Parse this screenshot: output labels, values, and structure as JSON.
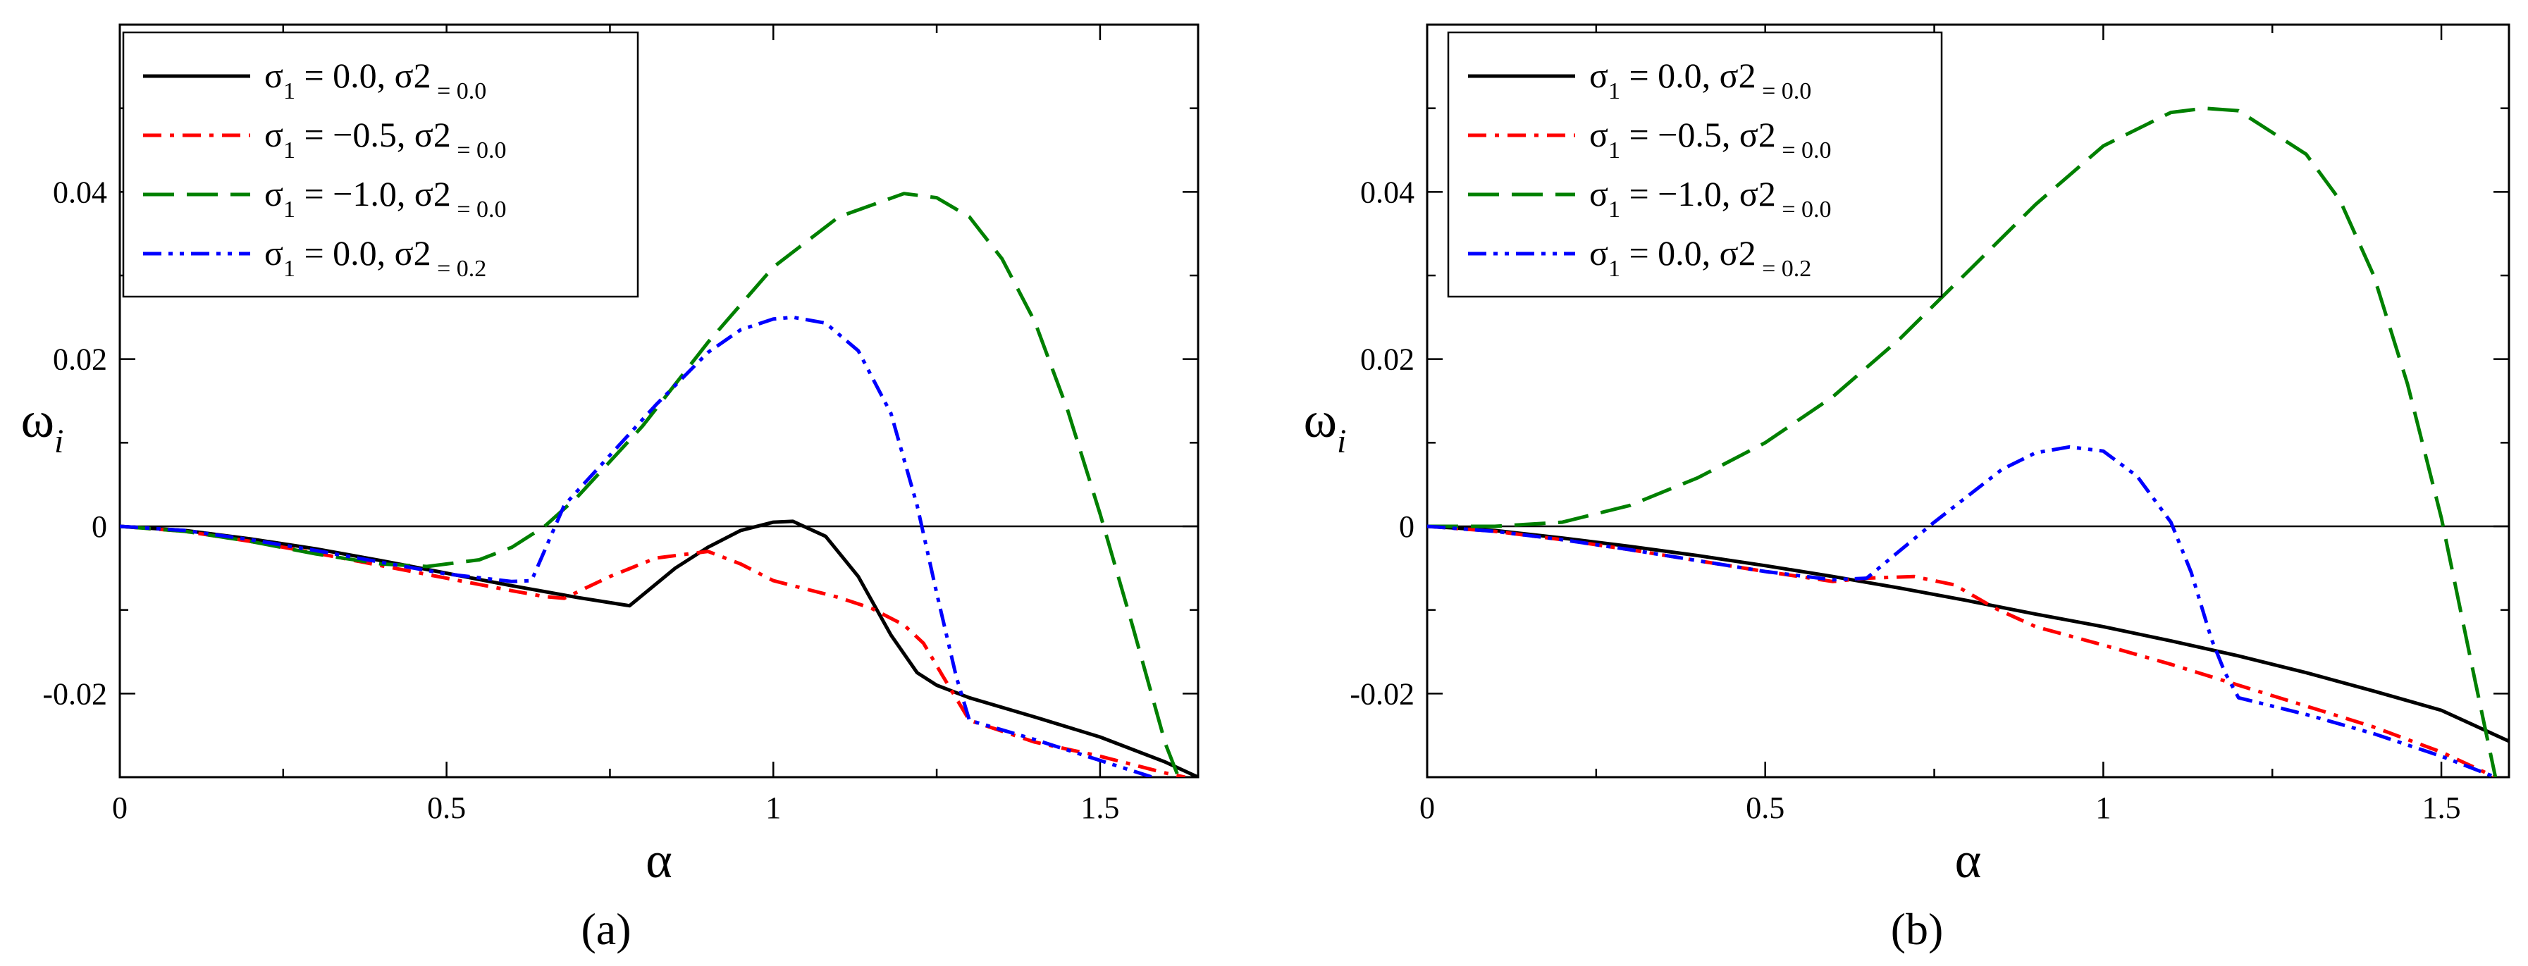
{
  "colors": {
    "black": "#000000",
    "red": "#ff0000",
    "green": "#008000",
    "blue": "#0000ff"
  },
  "chart_data": [
    {
      "type": "line",
      "panel_label": "(a)",
      "xlabel": "α",
      "ylabel": "ω",
      "ylabel_subscript": "i",
      "xlim": [
        0,
        1.65
      ],
      "ylim": [
        -0.03,
        0.06
      ],
      "x_ticks": [
        "0",
        "0.5",
        "1",
        "1.5"
      ],
      "x_tick_values": [
        0,
        0.5,
        1,
        1.5
      ],
      "y_ticks": [
        "-0.02",
        "0",
        "0.02",
        "0.04"
      ],
      "y_tick_values": [
        -0.02,
        0,
        0.02,
        0.04
      ],
      "zero_line": true,
      "legend": "top-left",
      "series": [
        {
          "name": "σ₁ = 0.0, σ₂ = 0.0",
          "legend_parts": [
            "σ",
            "1",
            " = 0.0, σ",
            "2",
            " = 0.0"
          ],
          "color": "#000000",
          "dash": "solid",
          "x": [
            0,
            0.1,
            0.2,
            0.3,
            0.4,
            0.5,
            0.6,
            0.7,
            0.78,
            0.85,
            0.9,
            0.95,
            1.0,
            1.03,
            1.08,
            1.13,
            1.18,
            1.22,
            1.25,
            1.3,
            1.4,
            1.5,
            1.6,
            1.65
          ],
          "values": [
            0,
            -0.0005,
            -0.0015,
            -0.0027,
            -0.0041,
            -0.0056,
            -0.0071,
            -0.0085,
            -0.0095,
            -0.005,
            -0.0025,
            -0.0005,
            0.0005,
            0.0006,
            -0.0012,
            -0.006,
            -0.013,
            -0.0175,
            -0.019,
            -0.0205,
            -0.0228,
            -0.0252,
            -0.0282,
            -0.03
          ]
        },
        {
          "name": "σ₁ = −0.5, σ₂ = 0.0",
          "legend_parts": [
            "σ",
            "1",
            " = −0.5, σ",
            "2",
            " = 0.0"
          ],
          "color": "#ff0000",
          "dash": "dashdot",
          "x": [
            0,
            0.1,
            0.2,
            0.3,
            0.4,
            0.5,
            0.6,
            0.65,
            0.68,
            0.75,
            0.82,
            0.9,
            0.95,
            1.0,
            1.05,
            1.1,
            1.15,
            1.2,
            1.23,
            1.26,
            1.3,
            1.4,
            1.5,
            1.6,
            1.63
          ],
          "values": [
            0,
            -0.0006,
            -0.0018,
            -0.0032,
            -0.0047,
            -0.0062,
            -0.0077,
            -0.0084,
            -0.0086,
            -0.006,
            -0.0038,
            -0.003,
            -0.0045,
            -0.0065,
            -0.0075,
            -0.0085,
            -0.0098,
            -0.0118,
            -0.014,
            -0.018,
            -0.0232,
            -0.0258,
            -0.0275,
            -0.0295,
            -0.03
          ]
        },
        {
          "name": "σ₁ = −1.0, σ₂ = 0.0",
          "legend_parts": [
            "σ",
            "1",
            " = −1.0, σ",
            "2",
            " = 0.0"
          ],
          "color": "#008000",
          "dash": "dashed",
          "x": [
            0,
            0.1,
            0.2,
            0.3,
            0.4,
            0.47,
            0.55,
            0.6,
            0.65,
            0.7,
            0.8,
            0.9,
            1.0,
            1.1,
            1.2,
            1.25,
            1.3,
            1.35,
            1.4,
            1.45,
            1.5,
            1.55,
            1.6,
            1.62
          ],
          "values": [
            0,
            -0.0006,
            -0.0018,
            -0.0033,
            -0.0045,
            -0.0048,
            -0.004,
            -0.0025,
            0.0,
            0.0035,
            0.012,
            0.022,
            0.031,
            0.037,
            0.0398,
            0.0393,
            0.037,
            0.032,
            0.0245,
            0.014,
            0.0015,
            -0.012,
            -0.026,
            -0.03
          ]
        },
        {
          "name": "σ₁ = 0.0, σ₂ = 0.2",
          "legend_parts": [
            "σ",
            "1",
            " = 0.0, σ",
            "2",
            " = 0.2"
          ],
          "color": "#0000ff",
          "dash": "dashdotdot",
          "x": [
            0,
            0.1,
            0.2,
            0.3,
            0.4,
            0.5,
            0.6,
            0.63,
            0.68,
            0.75,
            0.82,
            0.9,
            0.95,
            1.0,
            1.03,
            1.08,
            1.13,
            1.18,
            1.22,
            1.25,
            1.28,
            1.3,
            1.4,
            1.5,
            1.58
          ],
          "values": [
            0,
            -0.0005,
            -0.0016,
            -0.0029,
            -0.0043,
            -0.0057,
            -0.0066,
            -0.0065,
            0.0025,
            0.0085,
            0.0145,
            0.0208,
            0.0235,
            0.0248,
            0.025,
            0.0243,
            0.021,
            0.0135,
            0.0025,
            -0.008,
            -0.018,
            -0.0232,
            -0.0255,
            -0.028,
            -0.03
          ]
        }
      ]
    },
    {
      "type": "line",
      "panel_label": "(b)",
      "xlabel": "α",
      "ylabel": "ω",
      "ylabel_subscript": "i",
      "xlim": [
        0,
        1.6
      ],
      "ylim": [
        -0.03,
        0.06
      ],
      "x_ticks": [
        "0",
        "0.5",
        "1",
        "1.5"
      ],
      "x_tick_values": [
        0,
        0.5,
        1,
        1.5
      ],
      "y_ticks": [
        "-0.02",
        "0",
        "0.02",
        "0.04"
      ],
      "y_tick_values": [
        -0.02,
        0,
        0.02,
        0.04
      ],
      "zero_line": true,
      "legend": "top-left",
      "series": [
        {
          "name": "σ₁ = 0.0, σ₂ = 0.0",
          "legend_parts": [
            "σ",
            "1",
            " = 0.0, σ",
            "2",
            " = 0.0"
          ],
          "color": "#000000",
          "dash": "solid",
          "x": [
            0,
            0.1,
            0.2,
            0.3,
            0.4,
            0.5,
            0.6,
            0.7,
            0.8,
            0.9,
            1.0,
            1.1,
            1.2,
            1.3,
            1.4,
            1.5,
            1.6
          ],
          "values": [
            0,
            -0.0005,
            -0.0014,
            -0.0024,
            -0.0035,
            -0.0047,
            -0.006,
            -0.0074,
            -0.0089,
            -0.0105,
            -0.012,
            -0.0137,
            -0.0155,
            -0.0175,
            -0.0197,
            -0.022,
            -0.0257
          ]
        },
        {
          "name": "σ₁ = −0.5, σ₂ = 0.0",
          "legend_parts": [
            "σ",
            "1",
            " = −0.5, σ",
            "2",
            " = 0.0"
          ],
          "color": "#ff0000",
          "dash": "dashdot",
          "x": [
            0,
            0.1,
            0.2,
            0.3,
            0.4,
            0.5,
            0.6,
            0.65,
            0.72,
            0.78,
            0.84,
            0.9,
            1.0,
            1.1,
            1.2,
            1.3,
            1.4,
            1.5,
            1.58
          ],
          "values": [
            0,
            -0.0006,
            -0.0016,
            -0.0028,
            -0.0041,
            -0.0054,
            -0.0066,
            -0.0062,
            -0.006,
            -0.007,
            -0.0098,
            -0.012,
            -0.0142,
            -0.0165,
            -0.019,
            -0.0215,
            -0.024,
            -0.027,
            -0.03
          ]
        },
        {
          "name": "σ₁ = −1.0, σ₂ = 0.0",
          "legend_parts": [
            "σ",
            "1",
            " = −1.0, σ",
            "2",
            " = 0.0"
          ],
          "color": "#008000",
          "dash": "dashed",
          "x": [
            0,
            0.1,
            0.2,
            0.3,
            0.4,
            0.5,
            0.6,
            0.7,
            0.8,
            0.9,
            1.0,
            1.1,
            1.15,
            1.2,
            1.3,
            1.35,
            1.4,
            1.45,
            1.5,
            1.55,
            1.58
          ],
          "values": [
            0,
            0.0,
            0.0005,
            0.0025,
            0.0058,
            0.01,
            0.0155,
            0.0225,
            0.0305,
            0.0385,
            0.0455,
            0.0495,
            0.05,
            0.0497,
            0.0445,
            0.039,
            0.03,
            0.017,
            0.001,
            -0.0185,
            -0.03
          ]
        },
        {
          "name": "σ₁ = 0.0, σ₂ = 0.2",
          "legend_parts": [
            "σ",
            "1",
            " = 0.0, σ",
            "2",
            " = 0.2"
          ],
          "color": "#0000ff",
          "dash": "dashdotdot",
          "x": [
            0,
            0.1,
            0.2,
            0.3,
            0.4,
            0.5,
            0.6,
            0.65,
            0.75,
            0.85,
            0.9,
            0.95,
            1.0,
            1.05,
            1.1,
            1.13,
            1.16,
            1.18,
            1.2,
            1.3,
            1.4,
            1.5,
            1.58
          ],
          "values": [
            0,
            -0.0006,
            -0.0016,
            -0.0028,
            -0.0041,
            -0.0054,
            -0.0064,
            -0.0062,
            0.0005,
            0.0068,
            0.0088,
            0.0095,
            0.009,
            0.006,
            0.0005,
            -0.0055,
            -0.0135,
            -0.0175,
            -0.0205,
            -0.0225,
            -0.0248,
            -0.0275,
            -0.03
          ]
        }
      ]
    }
  ]
}
